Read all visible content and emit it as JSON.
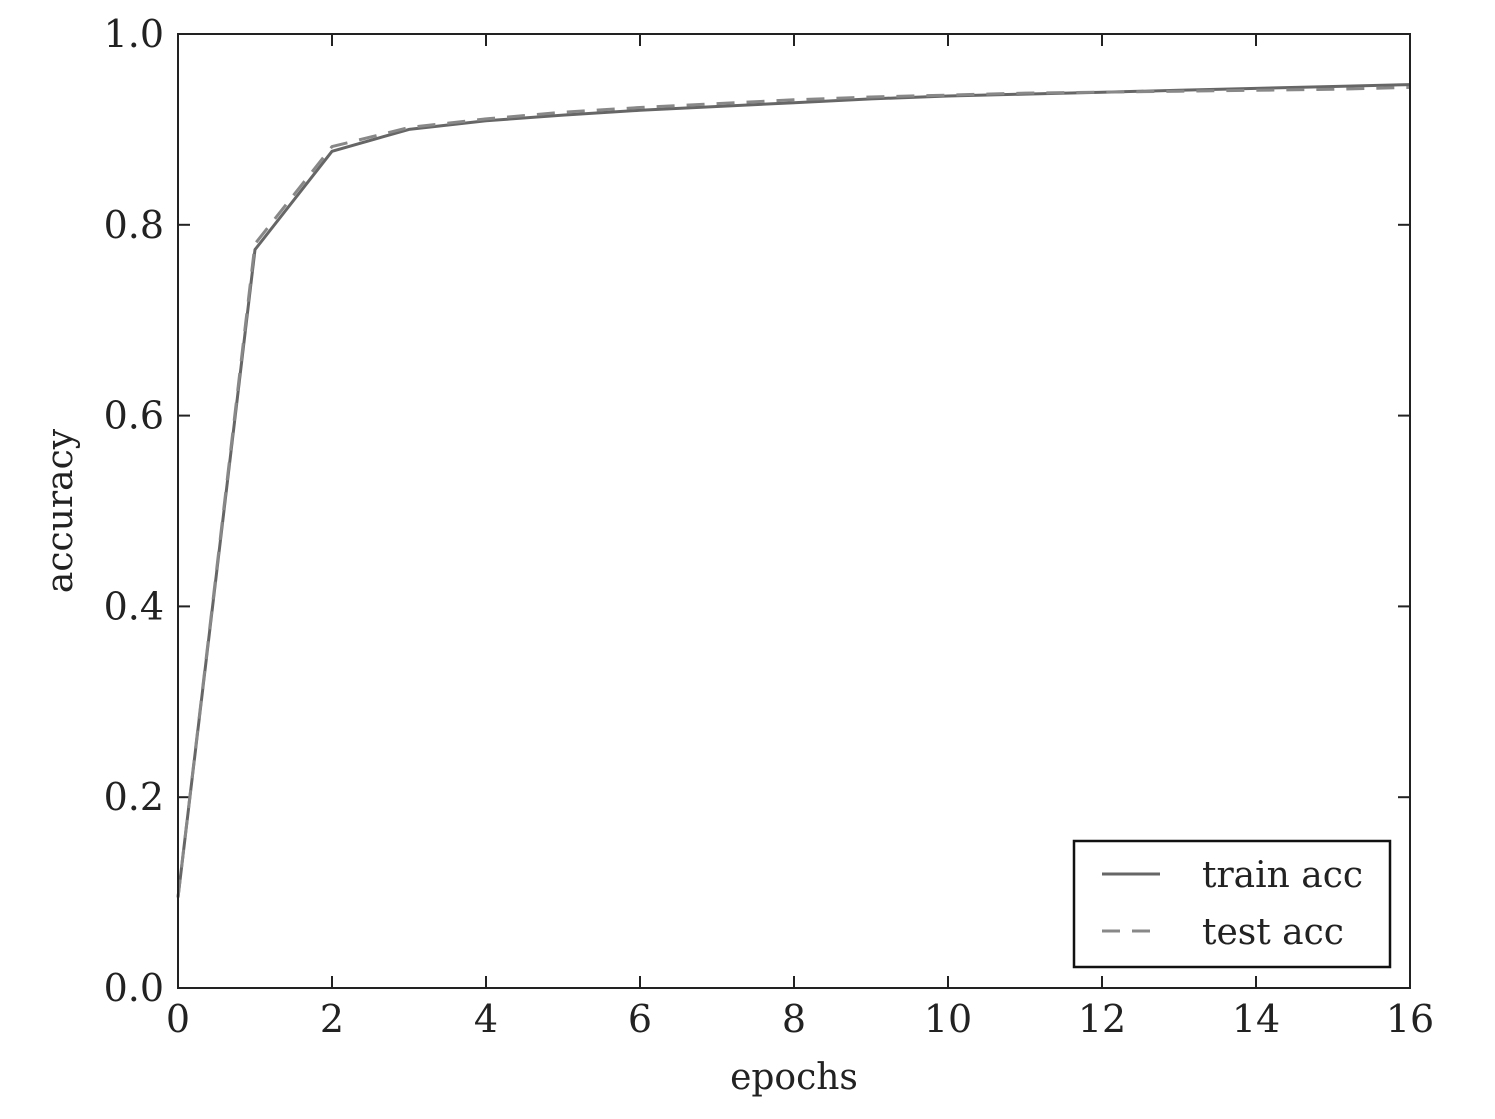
{
  "chart_data": {
    "type": "line",
    "title": "",
    "xlabel": "epochs",
    "ylabel": "accuracy",
    "xlim": [
      0,
      16
    ],
    "ylim": [
      0.0,
      1.0
    ],
    "xticks": [
      0,
      2,
      4,
      6,
      8,
      10,
      12,
      14,
      16
    ],
    "xtick_labels": [
      "0",
      "2",
      "4",
      "6",
      "8",
      "10",
      "12",
      "14",
      "16"
    ],
    "yticks": [
      0.0,
      0.2,
      0.4,
      0.6,
      0.8,
      1.0
    ],
    "ytick_labels": [
      "0.0",
      "0.2",
      "0.4",
      "0.6",
      "0.8",
      "1.0"
    ],
    "grid": false,
    "legend_position": "lower-right",
    "series": [
      {
        "name": "train acc",
        "style": "solid",
        "color": "#666666",
        "x": [
          0,
          1,
          2,
          3,
          4,
          5,
          6,
          7,
          8,
          9,
          10,
          11,
          12,
          13,
          14,
          15,
          16
        ],
        "y": [
          0.095,
          0.774,
          0.877,
          0.9,
          0.909,
          0.915,
          0.92,
          0.924,
          0.928,
          0.932,
          0.935,
          0.937,
          0.939,
          0.941,
          0.943,
          0.945,
          0.947
        ]
      },
      {
        "name": "test acc",
        "style": "dashed",
        "color": "#888888",
        "x": [
          0,
          1,
          2,
          3,
          4,
          5,
          6,
          7,
          8,
          9,
          10,
          11,
          12,
          13,
          14,
          15,
          16
        ],
        "y": [
          0.095,
          0.78,
          0.882,
          0.902,
          0.911,
          0.918,
          0.923,
          0.927,
          0.931,
          0.934,
          0.936,
          0.938,
          0.939,
          0.94,
          0.941,
          0.942,
          0.944
        ]
      }
    ]
  }
}
